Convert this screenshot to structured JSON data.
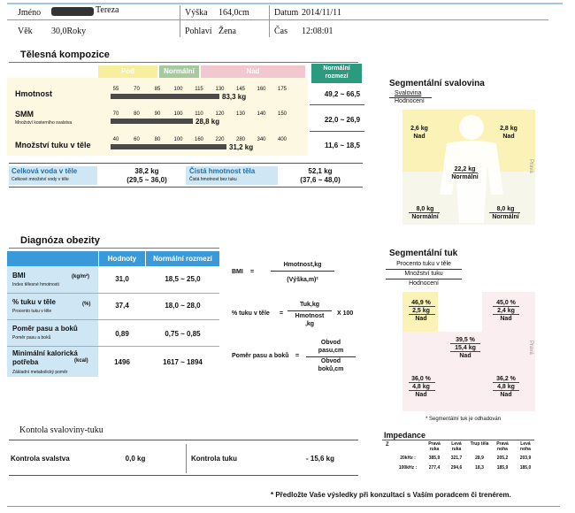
{
  "header": {
    "name_label": "Jméno",
    "name_value": "Tereza",
    "age_label": "Věk",
    "age_value": "30,0Roky",
    "height_label": "Výška",
    "height_value": "164,0cm",
    "gender_label": "Pohlaví",
    "gender_value": "Žena",
    "date_label": "Datum",
    "date_value": "2014/11/11",
    "time_label": "Čas",
    "time_value": "12:08:01"
  },
  "composition": {
    "title": "Tělesná kompozice",
    "band_under": "Pod",
    "band_normal": "Normální",
    "band_over": "Nad",
    "normal_header": "Normální rozmezí",
    "rows": [
      {
        "label": "Hmotnost",
        "sub": "",
        "ticks": [
          "55",
          "70",
          "85",
          "100",
          "115",
          "130",
          "145",
          "160",
          "175"
        ],
        "value": "83,3 kg",
        "range": "49,2 ~ 66,5",
        "fill": 0.84
      },
      {
        "label": "SMM",
        "sub": "Množství kosterního svalstva",
        "ticks": [
          "70",
          "80",
          "90",
          "100",
          "110",
          "120",
          "130",
          "140",
          "150"
        ],
        "value": "28,8 kg",
        "range": "22,0 ~ 26,9",
        "fill": 0.64
      },
      {
        "label": "Množství tuku v těle",
        "sub": "",
        "ticks": [
          "40",
          "60",
          "80",
          "100",
          "160",
          "220",
          "280",
          "340",
          "400"
        ],
        "value": "31,2 kg",
        "range": "11,6 ~ 18,5",
        "fill": 0.9
      }
    ],
    "water_label": "Celková voda v těle",
    "water_sub": "Celkové množství vody v těle",
    "water_value": "38,2 kg",
    "water_range": "(29,5 ~ 36,0)",
    "lean_label": "Čistá hmotnost těla",
    "lean_sub": "Čistá hmotnost bez tuku",
    "lean_value": "52,1 kg",
    "lean_range": "(37,6 ~ 48,0)"
  },
  "seg_muscle": {
    "title": "Segmentální svalovina",
    "sub1": "Svalovina",
    "sub2": "Hodnocení",
    "left_arm": "2,6 kg",
    "left_arm_eval": "Nad",
    "right_arm": "2,8 kg",
    "right_arm_eval": "Nad",
    "trunk": "22,2 kg",
    "trunk_eval": "Normální",
    "left_leg": "8,0 kg",
    "left_leg_eval": "Normální",
    "right_leg": "8,0 kg",
    "right_leg_eval": "Normální",
    "side_right": "Pravá"
  },
  "obesity": {
    "title": "Diagnóza obezity",
    "col_values": "Hodnoty",
    "col_normal": "Normální rozmezí",
    "rows": [
      {
        "label": "BMI",
        "unit": "(kg/m²)",
        "sub": "Index tělesné hmotnosti",
        "value": "31,0",
        "range": "18,5 ~ 25,0"
      },
      {
        "label": "% tuku v těle",
        "unit": "(%)",
        "sub": "Procento tuku v těle",
        "value": "37,4",
        "range": "18,0 ~ 28,0"
      },
      {
        "label": "Poměr pasu a boků",
        "unit": "",
        "sub": "Poměr pasu a boků",
        "value": "0,89",
        "range": "0,75 ~ 0,85"
      },
      {
        "label": "Minimální kalorická potřeba",
        "unit": "(kcal)",
        "sub": "Základní metabolický poměr",
        "value": "1496",
        "range": "1617 ~ 1894"
      }
    ],
    "f_bmi_label": "BMI",
    "f_bmi_num": "Hmotnost,kg",
    "f_bmi_den": "(Výška,m)²",
    "f_fat_label": "% tuku v těle",
    "f_fat_num": "Tuk,kg",
    "f_fat_den1": "Hmotnost",
    "f_fat_den2": ",kg",
    "f_fat_mult": "X 100",
    "f_whr_label": "Poměr pasu a boků",
    "f_whr_num1": "Obvod",
    "f_whr_num2": "pasu,cm",
    "f_whr_den1": "Obvod",
    "f_whr_den2": "boků,cm"
  },
  "seg_fat": {
    "title": "Segmentální tuk",
    "sub1": "Procento tuku v těle",
    "sub2": "Množství tuku",
    "sub3": "Hodnocení",
    "left_arm_pct": "46,9 %",
    "left_arm_kg": "2,5 kg",
    "left_arm_eval": "Nad",
    "right_arm_pct": "45,0 %",
    "right_arm_kg": "2,4 kg",
    "right_arm_eval": "Nad",
    "trunk_pct": "39,5 %",
    "trunk_kg": "15,4 kg",
    "trunk_eval": "Nad",
    "left_leg_pct": "36,0 %",
    "left_leg_kg": "4,8 kg",
    "left_leg_eval": "Nad",
    "right_leg_pct": "36,2 %",
    "right_leg_kg": "4,8 kg",
    "right_leg_eval": "Nad",
    "side_right": "Pravá",
    "note": "* Segmentální tuk je odhadován"
  },
  "control": {
    "title": "Kontola svaloviny-tuku",
    "muscle_label": "Kontrola svalstva",
    "muscle_value": "0,0 kg",
    "fat_label": "Kontrola tuku",
    "fat_value": "- 15,6 kg"
  },
  "impedance": {
    "title": "Impedance",
    "z": "Z",
    "cols": [
      "Pravá ruka",
      "Levá ruka",
      "Trup těla",
      "Pravá noha",
      "Levá noha"
    ],
    "rows": [
      {
        "freq": "20kHz :",
        "vals": [
          "385,9",
          "321,7",
          "28,9",
          "205,2",
          "203,9"
        ]
      },
      {
        "freq": "100kHz :",
        "vals": [
          "277,4",
          "294,6",
          "18,3",
          "185,9",
          "185,0"
        ]
      }
    ]
  },
  "footer": "* Předložte Vaše výsledky při konzultaci s Vaším poradcem či trenérem.",
  "colors": {
    "accent_blue": "#3a9ad9",
    "light_blue": "#cfe6f5",
    "band_yellow": "#f7ef9e",
    "band_green": "#a7c9a0",
    "band_pink": "#f2c7cf"
  }
}
